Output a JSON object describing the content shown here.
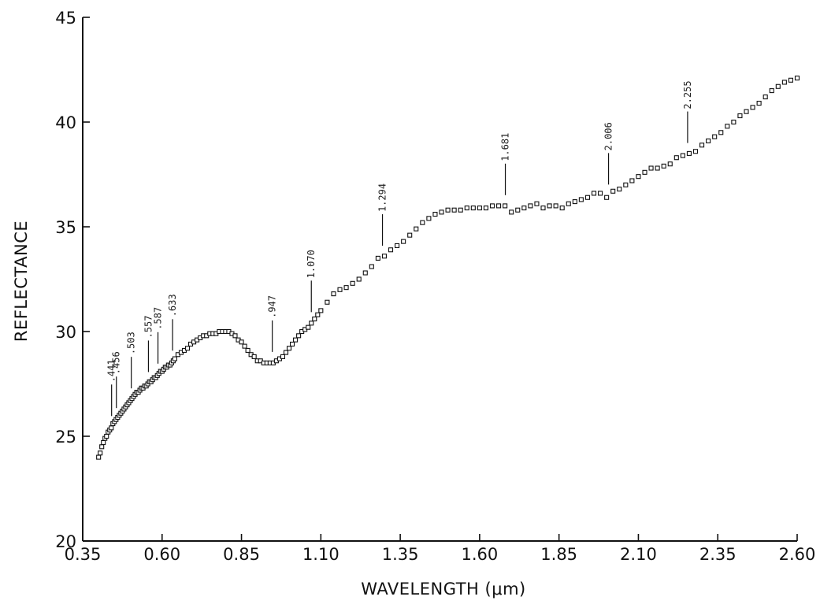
{
  "chart_data": {
    "type": "scatter",
    "title": "",
    "xlabel": "WAVELENGTH (μm)",
    "ylabel": "REFLECTANCE",
    "xlim": [
      0.35,
      2.6
    ],
    "ylim": [
      20,
      45
    ],
    "x_ticks": [
      "0.35",
      "0.60",
      "0.85",
      "1.10",
      "1.35",
      "1.60",
      "1.85",
      "2.10",
      "2.35",
      "2.60"
    ],
    "y_ticks": [
      "20",
      "25",
      "30",
      "35",
      "40",
      "45"
    ],
    "grid": false,
    "legend": "none",
    "marker": "open-square",
    "series": [
      {
        "x": [
          0.4,
          0.405,
          0.41,
          0.415,
          0.42,
          0.425,
          0.43,
          0.435,
          0.44,
          0.445,
          0.45,
          0.455,
          0.46,
          0.465,
          0.47,
          0.475,
          0.48,
          0.485,
          0.49,
          0.495,
          0.5,
          0.505,
          0.51,
          0.515,
          0.52,
          0.525,
          0.53,
          0.535,
          0.54,
          0.545,
          0.55,
          0.555,
          0.56,
          0.565,
          0.57,
          0.575,
          0.58,
          0.585,
          0.59,
          0.595,
          0.6,
          0.605,
          0.61,
          0.615,
          0.62,
          0.625,
          0.63,
          0.635,
          0.64,
          0.65,
          0.66,
          0.67,
          0.68,
          0.69,
          0.7,
          0.71,
          0.72,
          0.73,
          0.74,
          0.75,
          0.76,
          0.77,
          0.78,
          0.79,
          0.8,
          0.81,
          0.82,
          0.83,
          0.84,
          0.85,
          0.86,
          0.87,
          0.88,
          0.89,
          0.9,
          0.91,
          0.92,
          0.93,
          0.94,
          0.95,
          0.96,
          0.97,
          0.98,
          0.99,
          1.0,
          1.01,
          1.02,
          1.03,
          1.04,
          1.05,
          1.06,
          1.07,
          1.08,
          1.09,
          1.1,
          1.12,
          1.14,
          1.16,
          1.18,
          1.2,
          1.22,
          1.24,
          1.26,
          1.28,
          1.3,
          1.32,
          1.34,
          1.36,
          1.38,
          1.4,
          1.42,
          1.44,
          1.46,
          1.48,
          1.5,
          1.52,
          1.54,
          1.56,
          1.58,
          1.6,
          1.62,
          1.64,
          1.66,
          1.68,
          1.7,
          1.72,
          1.74,
          1.76,
          1.78,
          1.8,
          1.82,
          1.84,
          1.86,
          1.88,
          1.9,
          1.92,
          1.94,
          1.96,
          1.98,
          2.0,
          2.02,
          2.04,
          2.06,
          2.08,
          2.1,
          2.12,
          2.14,
          2.16,
          2.18,
          2.2,
          2.22,
          2.24,
          2.26,
          2.28,
          2.3,
          2.32,
          2.34,
          2.36,
          2.38,
          2.4,
          2.42,
          2.44,
          2.46,
          2.48,
          2.5,
          2.52,
          2.54,
          2.56,
          2.58,
          2.6
        ],
        "y": [
          24.0,
          24.2,
          24.5,
          24.7,
          24.9,
          25.0,
          25.2,
          25.3,
          25.4,
          25.6,
          25.7,
          25.8,
          25.9,
          26.0,
          26.1,
          26.2,
          26.3,
          26.4,
          26.5,
          26.6,
          26.7,
          26.8,
          26.9,
          27.0,
          27.1,
          27.1,
          27.2,
          27.3,
          27.3,
          27.4,
          27.4,
          27.5,
          27.6,
          27.6,
          27.7,
          27.8,
          27.8,
          27.9,
          28.0,
          28.1,
          28.1,
          28.2,
          28.3,
          28.3,
          28.4,
          28.4,
          28.5,
          28.6,
          28.7,
          28.9,
          29.0,
          29.1,
          29.2,
          29.4,
          29.5,
          29.6,
          29.7,
          29.8,
          29.8,
          29.9,
          29.9,
          29.9,
          30.0,
          30.0,
          30.0,
          30.0,
          29.9,
          29.8,
          29.6,
          29.5,
          29.3,
          29.1,
          28.9,
          28.8,
          28.6,
          28.6,
          28.5,
          28.5,
          28.5,
          28.5,
          28.6,
          28.7,
          28.8,
          29.0,
          29.2,
          29.4,
          29.6,
          29.8,
          30.0,
          30.1,
          30.2,
          30.4,
          30.6,
          30.8,
          31.0,
          31.4,
          31.8,
          32.0,
          32.1,
          32.3,
          32.5,
          32.8,
          33.1,
          33.5,
          33.6,
          33.9,
          34.1,
          34.3,
          34.6,
          34.9,
          35.2,
          35.4,
          35.6,
          35.7,
          35.8,
          35.8,
          35.8,
          35.9,
          35.9,
          35.9,
          35.9,
          36.0,
          36.0,
          36.0,
          35.7,
          35.8,
          35.9,
          36.0,
          36.1,
          35.9,
          36.0,
          36.0,
          35.9,
          36.1,
          36.2,
          36.3,
          36.4,
          36.6,
          36.6,
          36.4,
          36.7,
          36.8,
          37.0,
          37.2,
          37.4,
          37.6,
          37.8,
          37.8,
          37.9,
          38.0,
          38.3,
          38.4,
          38.5,
          38.6,
          38.9,
          39.1,
          39.3,
          39.5,
          39.8,
          40.0,
          40.3,
          40.5,
          40.7,
          40.9,
          41.2,
          41.5,
          41.7,
          41.9,
          42.0,
          42.1
        ]
      }
    ],
    "annotations": [
      {
        "label": ".441",
        "x": 0.441
      },
      {
        "label": ".456",
        "x": 0.456
      },
      {
        "label": ".503",
        "x": 0.503
      },
      {
        "label": ".557",
        "x": 0.557
      },
      {
        "label": ".587",
        "x": 0.587
      },
      {
        "label": ".633",
        "x": 0.633
      },
      {
        "label": ".947",
        "x": 0.947
      },
      {
        "label": "1.070",
        "x": 1.07
      },
      {
        "label": "1.294",
        "x": 1.294
      },
      {
        "label": "1.681",
        "x": 1.681
      },
      {
        "label": "2.006",
        "x": 2.006
      },
      {
        "label": "2.255",
        "x": 2.255
      }
    ]
  }
}
